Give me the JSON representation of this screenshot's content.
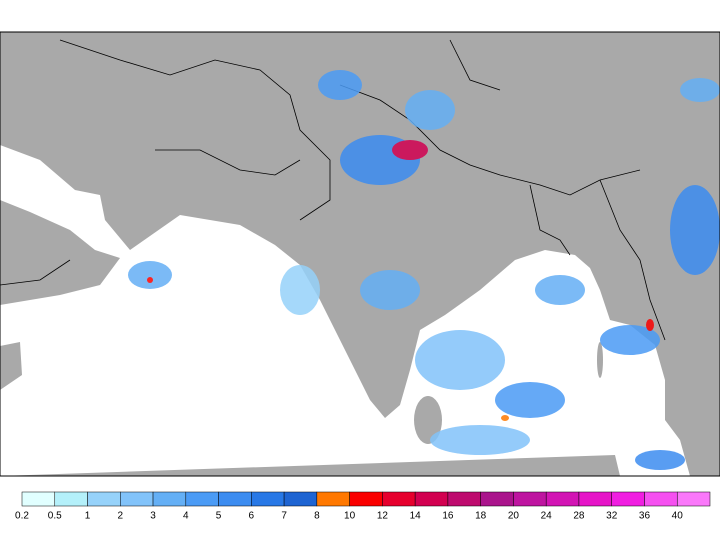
{
  "colorbar": {
    "labels": [
      0.2,
      0.5,
      1,
      2,
      3,
      4,
      5,
      6,
      7,
      8,
      10,
      12,
      14,
      16,
      18,
      20,
      24,
      28,
      32,
      36,
      40
    ],
    "colors": [
      "#e1ffff",
      "#b4f0fa",
      "#96d2fa",
      "#82c3fa",
      "#64aff5",
      "#4b9bf5",
      "#3c8cf0",
      "#2878e6",
      "#1e64d2",
      "#ff7800",
      "#fa0000",
      "#e6002d",
      "#d20050",
      "#be0a6e",
      "#aa148c",
      "#be14a0",
      "#d214b4",
      "#e614c8",
      "#f01ee1",
      "#f550f0",
      "#fa78fa"
    ]
  }
}
